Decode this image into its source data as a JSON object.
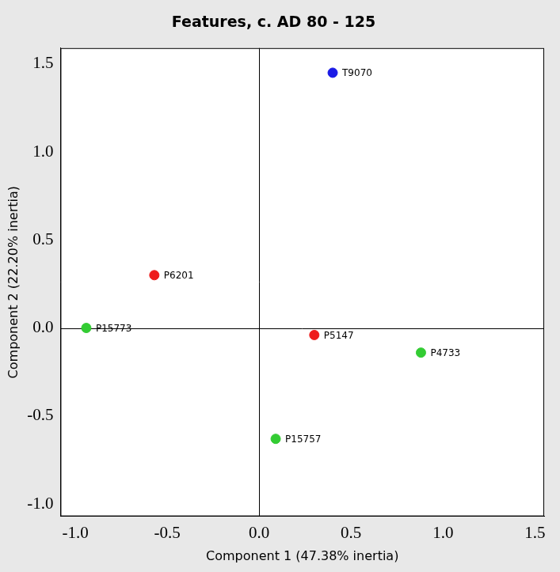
{
  "chart_data": {
    "type": "scatter",
    "title": "Features, c. AD 80 - 125",
    "x_label": "Component 1 (47.38% inertia)",
    "y_label": "Component 2 (22.20% inertia)",
    "point_labels": [
      "T9070",
      "P6201",
      "P15773",
      "P5147",
      "P4733",
      "P15757"
    ],
    "x": [
      0.4,
      -0.57,
      -0.94,
      0.3,
      0.88,
      0.09
    ],
    "values": [
      1.45,
      0.3,
      0.0,
      -0.04,
      -0.14,
      -0.63
    ],
    "colors": [
      "#1a1ae6",
      "#ee1c1c",
      "#33cc33",
      "#ee1c1c",
      "#33cc33",
      "#33cc33"
    ],
    "xlim": [
      -1.08,
      1.55
    ],
    "ylim": [
      -1.07,
      1.59
    ],
    "xticks": [
      {
        "value": -1,
        "label": "-1.0"
      },
      -0.5,
      {
        "value": 0,
        "label": "0.0"
      },
      0.5,
      {
        "value": 1,
        "label": "1.0"
      },
      1.5
    ],
    "yticks": [
      {
        "value": -1,
        "label": "-1.0"
      },
      -0.5,
      {
        "value": 0,
        "label": "0.0"
      },
      0.5,
      {
        "value": 1,
        "label": "1.0"
      },
      1.5
    ],
    "grid": false,
    "marker": "circle"
  }
}
